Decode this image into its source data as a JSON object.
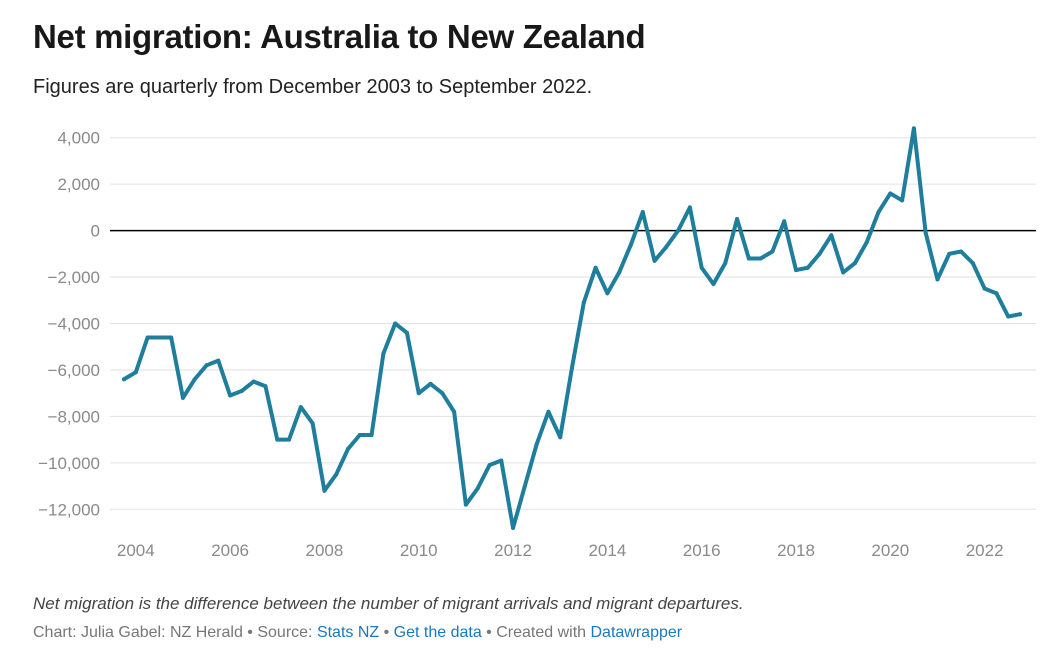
{
  "header": {
    "title": "Net migration: Australia to New Zealand",
    "subtitle": "Figures are quarterly from December 2003 to September 2022."
  },
  "notes": "Net migration is the difference between the number of migrant arrivals and migrant departures.",
  "footer": {
    "chart_prefix": "Chart: Julia Gabel: NZ Herald • Source: ",
    "source_link": "Stats NZ",
    "sep1": " • ",
    "data_link": "Get the data",
    "sep2": " • Created with ",
    "tool_link": "Datawrapper"
  },
  "colors": {
    "line": "#1f7e9b",
    "grid": "#e2e2e2",
    "zero": "#000000",
    "tick": "#8a8a8a",
    "link": "#1d78bd"
  },
  "chart_data": {
    "type": "line",
    "title": "Net migration: Australia to New Zealand",
    "subtitle": "Figures are quarterly from December 2003 to September 2022.",
    "xlabel": "",
    "ylabel": "",
    "xlim": [
      2003.75,
      2022.75
    ],
    "ylim": [
      -13000,
      4400
    ],
    "y_ticks": [
      4000,
      2000,
      0,
      -2000,
      -4000,
      -6000,
      -8000,
      -10000,
      -12000
    ],
    "y_tick_labels": [
      "4,000",
      "2,000",
      "0",
      "−2,000",
      "−4,000",
      "−6,000",
      "−8,000",
      "−10,000",
      "−12,000"
    ],
    "x_ticks": [
      2004,
      2006,
      2008,
      2010,
      2012,
      2014,
      2016,
      2018,
      2020,
      2022
    ],
    "x_tick_labels": [
      "2004",
      "2006",
      "2008",
      "2010",
      "2012",
      "2014",
      "2016",
      "2018",
      "2020",
      "2022"
    ],
    "grid": true,
    "legend": "none",
    "x": [
      2003.75,
      2004,
      2004.25,
      2004.5,
      2004.75,
      2005,
      2005.25,
      2005.5,
      2005.75,
      2006,
      2006.25,
      2006.5,
      2006.75,
      2007,
      2007.25,
      2007.5,
      2007.75,
      2008,
      2008.25,
      2008.5,
      2008.75,
      2009,
      2009.25,
      2009.5,
      2009.75,
      2010,
      2010.25,
      2010.5,
      2010.75,
      2011,
      2011.25,
      2011.5,
      2011.75,
      2012,
      2012.25,
      2012.5,
      2012.75,
      2013,
      2013.25,
      2013.5,
      2013.75,
      2014,
      2014.25,
      2014.5,
      2014.75,
      2015,
      2015.25,
      2015.5,
      2015.75,
      2016,
      2016.25,
      2016.5,
      2016.75,
      2017,
      2017.25,
      2017.5,
      2017.75,
      2018,
      2018.25,
      2018.5,
      2018.75,
      2019,
      2019.25,
      2019.5,
      2019.75,
      2020,
      2020.25,
      2020.5,
      2020.75,
      2021,
      2021.25,
      2021.5,
      2021.75,
      2022,
      2022.25,
      2022.5,
      2022.75
    ],
    "series": [
      {
        "values": [
          -6400,
          -6100,
          -4600,
          -4600,
          -4600,
          -7200,
          -6400,
          -5800,
          -5600,
          -7100,
          -6900,
          -6500,
          -6700,
          -9000,
          -9000,
          -7600,
          -8300,
          -11200,
          -10500,
          -9400,
          -8800,
          -8800,
          -5300,
          -4000,
          -4400,
          -7000,
          -6600,
          -7000,
          -7800,
          -11800,
          -11100,
          -10100,
          -9900,
          -12800,
          -11000,
          -9200,
          -7800,
          -8900,
          -5900,
          -3100,
          -1600,
          -2700,
          -1800,
          -600,
          800,
          -1300,
          -700,
          0,
          1000,
          -1600,
          -2300,
          -1400,
          500,
          -1200,
          -1200,
          -900,
          400,
          -1700,
          -1600,
          -1000,
          -200,
          -1800,
          -1400,
          -500,
          800,
          1600,
          1300,
          4400,
          -100,
          -2100,
          -1000,
          -900,
          -1400,
          -2500,
          -2700,
          -3700,
          -3600
        ]
      }
    ]
  }
}
